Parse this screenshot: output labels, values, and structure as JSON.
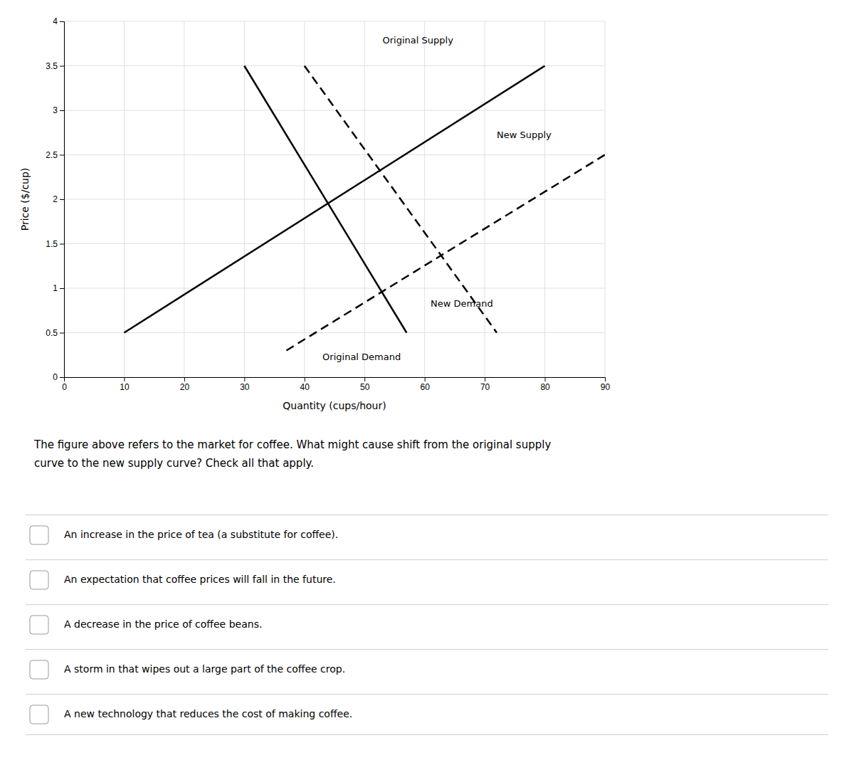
{
  "chart_data": {
    "type": "line",
    "xlabel": "Quantity (cups/hour)",
    "ylabel": "Price ($/cup)",
    "xlim": [
      0,
      90
    ],
    "ylim": [
      0,
      4
    ],
    "xticks": [
      0,
      10,
      20,
      30,
      40,
      50,
      60,
      70,
      80,
      90
    ],
    "yticks": [
      0,
      0.5,
      1,
      1.5,
      2,
      2.5,
      3,
      3.5,
      4
    ],
    "grid": true,
    "series": [
      {
        "x": [
          10,
          80
        ],
        "values": [
          0.5,
          3.5
        ],
        "color": "#000000",
        "line_style": "solid"
      },
      {
        "x": [
          30,
          57
        ],
        "values": [
          3.5,
          0.5
        ],
        "color": "#000000",
        "line_style": "solid"
      },
      {
        "x": [
          37,
          90
        ],
        "values": [
          0.3,
          2.5
        ],
        "color": "#000000",
        "line_style": "dashed"
      },
      {
        "x": [
          40,
          72
        ],
        "values": [
          3.5,
          0.5
        ],
        "color": "#000000",
        "line_style": "dashed"
      }
    ],
    "annotations": [
      {
        "text": "Original Supply",
        "x": 53,
        "y": 3.78
      },
      {
        "text": "New Supply",
        "x": 72,
        "y": 2.72
      },
      {
        "text": "Original Demand",
        "x": 43,
        "y": 0.22
      },
      {
        "text": "New Demand",
        "x": 61,
        "y": 0.82
      }
    ],
    "question": [
      "The figure above refers to the market for coffee. What might cause shift from the original supply",
      "curve to the new supply curve? Check all that apply."
    ],
    "answer_options": [
      "An increase in the price of tea (a substitute for coffee).",
      "An expectation that coffee prices will fall in the future.",
      "A decrease in the price of coffee beans.",
      "A storm in that wipes out a large part of the coffee crop.",
      "A new technology that reduces the cost of making coffee."
    ]
  }
}
